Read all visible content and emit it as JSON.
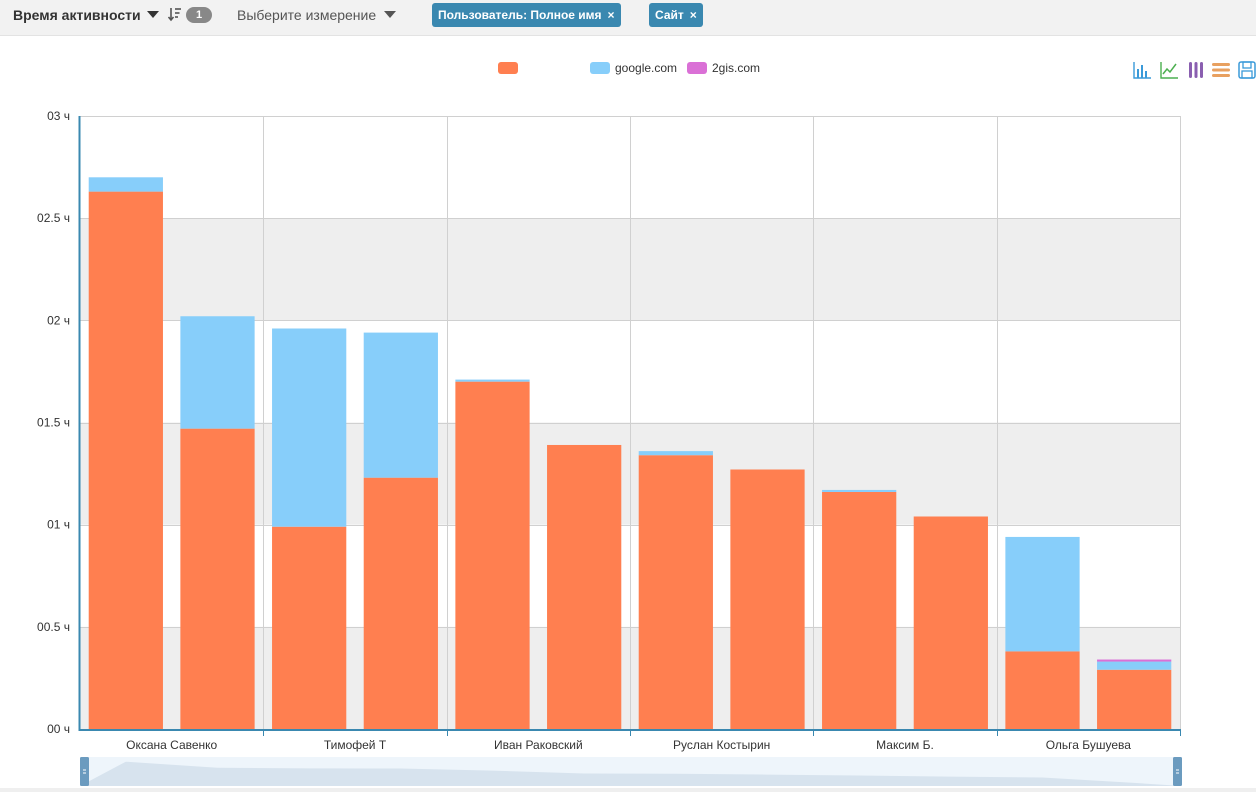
{
  "toolbar": {
    "measure_label": "Время активности",
    "sort_badge": "1",
    "dimension_placeholder": "Выберите измерение",
    "chips": [
      {
        "label": "Пользователь: Полное имя",
        "close": "×"
      },
      {
        "label": "Сайт",
        "close": "×"
      }
    ]
  },
  "legend": [
    {
      "name": "",
      "color": "#ff7f50"
    },
    {
      "name": "google.com",
      "color": "#87cefa"
    },
    {
      "name": "2gis.com",
      "color": "#da70d6"
    }
  ],
  "chart_icons": [
    "bar-chart-icon",
    "line-chart-icon",
    "stacked-columns-icon",
    "stacked-rows-icon",
    "save-icon"
  ],
  "chart_data": {
    "type": "bar",
    "stacked": true,
    "categories": [
      "Оксана Савенко",
      "",
      "Тимофей Т",
      "",
      "Иван Раковский",
      "",
      "Руслан Костырин",
      "",
      "Максим Б.",
      "",
      "Ольга Бушуева",
      ""
    ],
    "series": [
      {
        "name": "",
        "color": "#ff7f50",
        "values": [
          2.63,
          1.47,
          0.99,
          1.23,
          1.7,
          1.39,
          1.34,
          1.27,
          1.16,
          1.04,
          0.38,
          0.29
        ]
      },
      {
        "name": "google.com",
        "color": "#87cefa",
        "values": [
          0.07,
          0.55,
          0.97,
          0.71,
          0.01,
          0.0,
          0.02,
          0.0,
          0.01,
          0.0,
          0.56,
          0.04
        ]
      },
      {
        "name": "2gis.com",
        "color": "#da70d6",
        "values": [
          0,
          0,
          0,
          0,
          0,
          0,
          0,
          0,
          0,
          0,
          0,
          0.01
        ]
      }
    ],
    "yticks": [
      "00 ч",
      "00.5 ч",
      "01 ч",
      "01.5 ч",
      "02 ч",
      "02.5 ч",
      "03 ч"
    ],
    "ylim": [
      0,
      3
    ],
    "grid": true,
    "legend_position": "top-center"
  }
}
